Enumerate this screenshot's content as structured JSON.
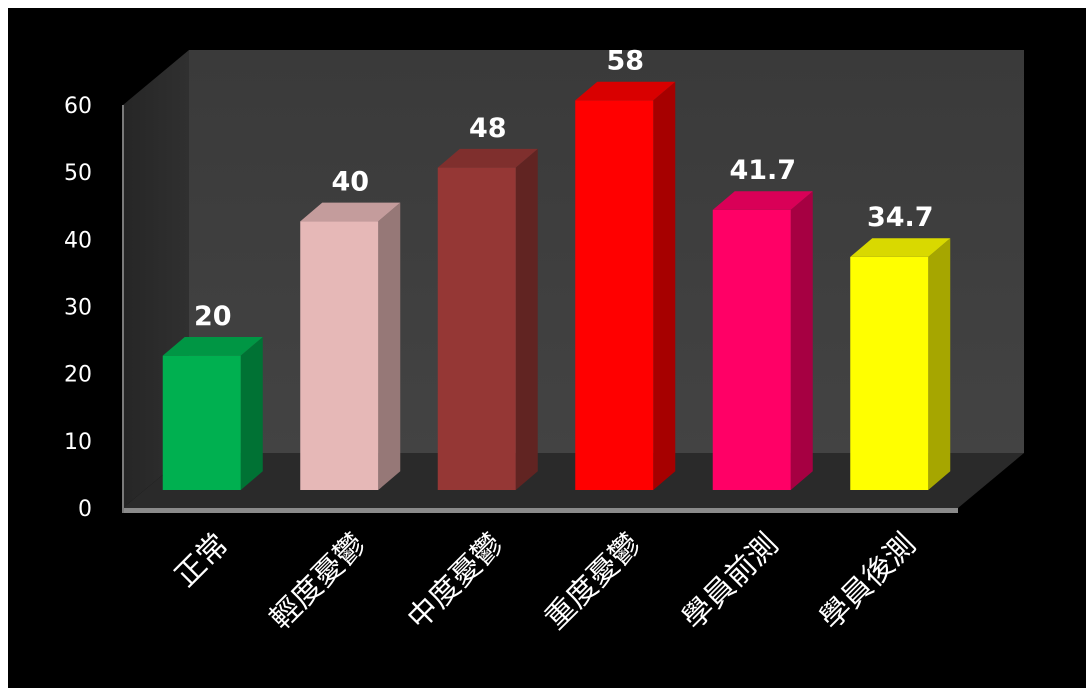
{
  "chart_data": {
    "type": "bar",
    "title": "",
    "xlabel": "",
    "ylabel": "",
    "ylim": [
      0,
      60
    ],
    "yticks": [
      0,
      10,
      20,
      30,
      40,
      50,
      60
    ],
    "grid": false,
    "legend": "none",
    "style": "3d-columns",
    "categories": [
      "正常",
      "輕度憂鬱",
      "中度憂鬱",
      "重度憂鬱",
      "學員前測",
      "學員後測"
    ],
    "values": [
      20,
      40,
      48,
      58,
      41.7,
      34.7
    ],
    "value_labels": [
      "20",
      "40",
      "48",
      "58",
      "41.7",
      "34.7"
    ],
    "colors": [
      "#00b050",
      "#e6b8b7",
      "#953735",
      "#ff0000",
      "#ff0066",
      "#ffff00"
    ]
  }
}
